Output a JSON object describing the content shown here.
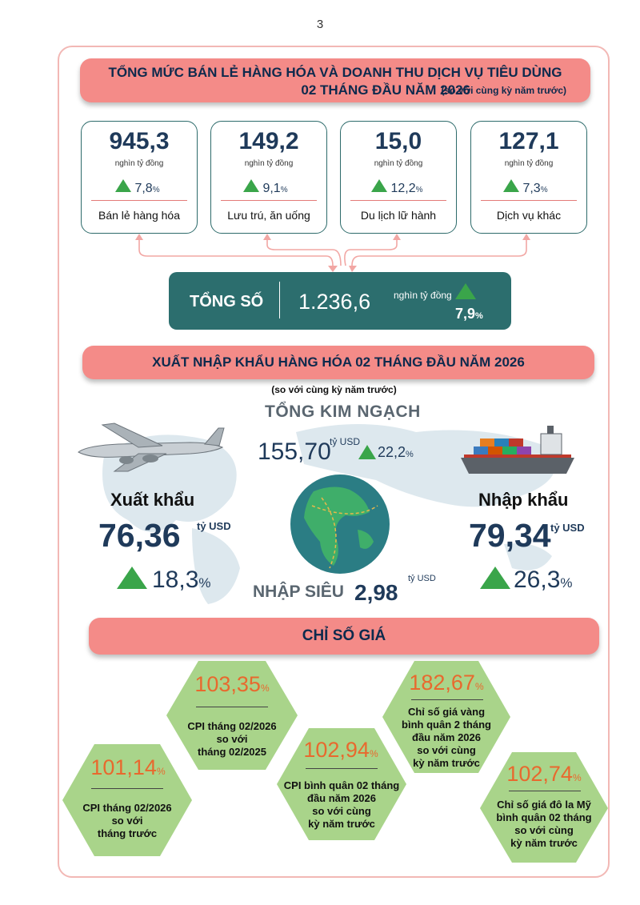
{
  "page_number": "3",
  "retail": {
    "title_line1": "TỔNG MỨC BÁN LẺ HÀNG HÓA VÀ DOANH THU DỊCH VỤ TIÊU DÙNG",
    "title_line2": "02 THÁNG ĐẦU NĂM 2026",
    "title_note": "(so với cùng kỳ năm trước)",
    "cards": [
      {
        "value": "945,3",
        "unit": "nghìn tỷ đồng",
        "growth": "7,8",
        "pct": "%",
        "label": "Bán lẻ hàng hóa"
      },
      {
        "value": "149,2",
        "unit": "nghìn tỷ đồng",
        "growth": "9,1",
        "pct": "%",
        "label": "Lưu trú, ăn uống"
      },
      {
        "value": "15,0",
        "unit": "nghìn tỷ đồng",
        "growth": "12,2",
        "pct": "%",
        "label": "Du lịch lữ hành"
      },
      {
        "value": "127,1",
        "unit": "nghìn tỷ đồng",
        "growth": "7,3",
        "pct": "%",
        "label": "Dịch vụ khác"
      }
    ],
    "total": {
      "label": "TỔNG SỐ",
      "value": "1.236,6",
      "unit": "nghìn tỷ đồng",
      "growth": "7,9",
      "pct": "%"
    }
  },
  "trade": {
    "title": "XUẤT NHẬP KHẨU HÀNG HÓA 02 THÁNG ĐẦU NĂM 2026",
    "subtitle": "(so với cùng kỳ năm trước)",
    "total_label": "TỔNG KIM NGẠCH",
    "total_value": "155,70",
    "total_unit": "tỷ USD",
    "total_growth": "22,2",
    "pct": "%",
    "export_label": "Xuất khẩu",
    "export_value": "76,36",
    "export_unit": "tỷ USD",
    "export_growth": "18,3",
    "import_label": "Nhập khẩu",
    "import_value": "79,34",
    "import_unit": "tỷ USD",
    "import_growth": "26,3",
    "deficit_label": "NHẬP SIÊU",
    "deficit_value": "2,98",
    "deficit_unit": "tỷ USD"
  },
  "price": {
    "title": "CHỈ SỐ GIÁ",
    "pct": "%",
    "items": [
      {
        "value": "103,35",
        "desc": [
          "CPI tháng 02/2026",
          "so với",
          "tháng 02/2025"
        ]
      },
      {
        "value": "182,67",
        "desc": [
          "Chỉ số giá vàng",
          "bình quân 2 tháng",
          "đầu năm 2026",
          "so với cùng",
          "kỳ năm trước"
        ]
      },
      {
        "value": "101,14",
        "desc": [
          "CPI tháng 02/2026",
          "so với",
          "tháng trước"
        ]
      },
      {
        "value": "102,94",
        "desc": [
          "CPI bình quân 02 tháng",
          "đầu năm 2026",
          "so với cùng",
          "kỳ năm trước"
        ]
      },
      {
        "value": "102,74",
        "desc": [
          "Chỉ số giá đô la Mỹ",
          "bình quân 02 tháng",
          "so với cùng",
          "kỳ năm trước"
        ]
      }
    ]
  },
  "colors": {
    "banner": "#f48b88",
    "teal": "#2c6e6e",
    "hex": "#a9d48a",
    "growth": "#3aa54a",
    "cpi_value": "#e8692e"
  }
}
